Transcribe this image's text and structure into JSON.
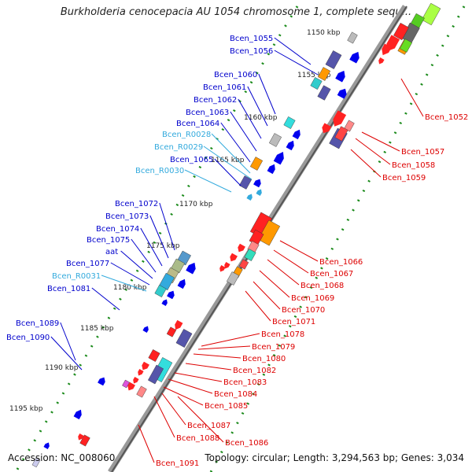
{
  "title": "Burkholderia cenocepacia AU 1054 chromosome 1, complete sequ...",
  "footer": {
    "accession": "Accession: NC_008060",
    "summary": "Topology: circular; Length: 3,294,563 bp; Genes: 3,034"
  },
  "colors": {
    "backbone": "#777777",
    "ticks": "#1a8a1a",
    "label_blue": "#0000cc",
    "label_cyan": "#33aadd",
    "label_red": "#dd0000"
  },
  "kbp_labels": [
    "1150 kbp",
    "1155 kbp",
    "1160 kbp",
    "1165 kbp",
    "1170 kbp",
    "1175 kbp",
    "1180 kbp",
    "1185 kbp",
    "1190 kbp",
    "1195 kbp"
  ],
  "left_genes": [
    {
      "label": "Bcen_1055",
      "color": "blue"
    },
    {
      "label": "Bcen_1056",
      "color": "blue"
    },
    {
      "label": "Bcen_1060",
      "color": "blue"
    },
    {
      "label": "Bcen_1061",
      "color": "blue"
    },
    {
      "label": "Bcen_1062",
      "color": "blue"
    },
    {
      "label": "Bcen_1063",
      "color": "blue"
    },
    {
      "label": "Bcen_1064",
      "color": "blue"
    },
    {
      "label": "Bcen_R0028",
      "color": "cyan"
    },
    {
      "label": "Bcen_R0029",
      "color": "cyan"
    },
    {
      "label": "Bcen_1065",
      "color": "blue"
    },
    {
      "label": "Bcen_R0030",
      "color": "cyan"
    },
    {
      "label": "Bcen_1072",
      "color": "blue"
    },
    {
      "label": "Bcen_1073",
      "color": "blue"
    },
    {
      "label": "Bcen_1074",
      "color": "blue"
    },
    {
      "label": "Bcen_1075",
      "color": "blue"
    },
    {
      "label": "aat",
      "color": "blue"
    },
    {
      "label": "Bcen_1077",
      "color": "blue"
    },
    {
      "label": "Bcen_R0031",
      "color": "cyan"
    },
    {
      "label": "Bcen_1081",
      "color": "blue"
    },
    {
      "label": "Bcen_1089",
      "color": "blue"
    },
    {
      "label": "Bcen_1090",
      "color": "blue"
    }
  ],
  "right_genes": [
    {
      "label": "Bcen_1052"
    },
    {
      "label": "Bcen_1057"
    },
    {
      "label": "Bcen_1058"
    },
    {
      "label": "Bcen_1059"
    },
    {
      "label": "Bcen_1066"
    },
    {
      "label": "Bcen_1067"
    },
    {
      "label": "Bcen_1068"
    },
    {
      "label": "Bcen_1069"
    },
    {
      "label": "Bcen_1070"
    },
    {
      "label": "Bcen_1071"
    },
    {
      "label": "Bcen_1078"
    },
    {
      "label": "Bcen_1079"
    },
    {
      "label": "Bcen_1080"
    },
    {
      "label": "Bcen_1082"
    },
    {
      "label": "Bcen_1083"
    },
    {
      "label": "Bcen_1084"
    },
    {
      "label": "Bcen_1085"
    },
    {
      "label": "Bcen_1086"
    },
    {
      "label": "Bcen_1087"
    },
    {
      "label": "Bcen_1088"
    },
    {
      "label": "Bcen_1091"
    }
  ]
}
